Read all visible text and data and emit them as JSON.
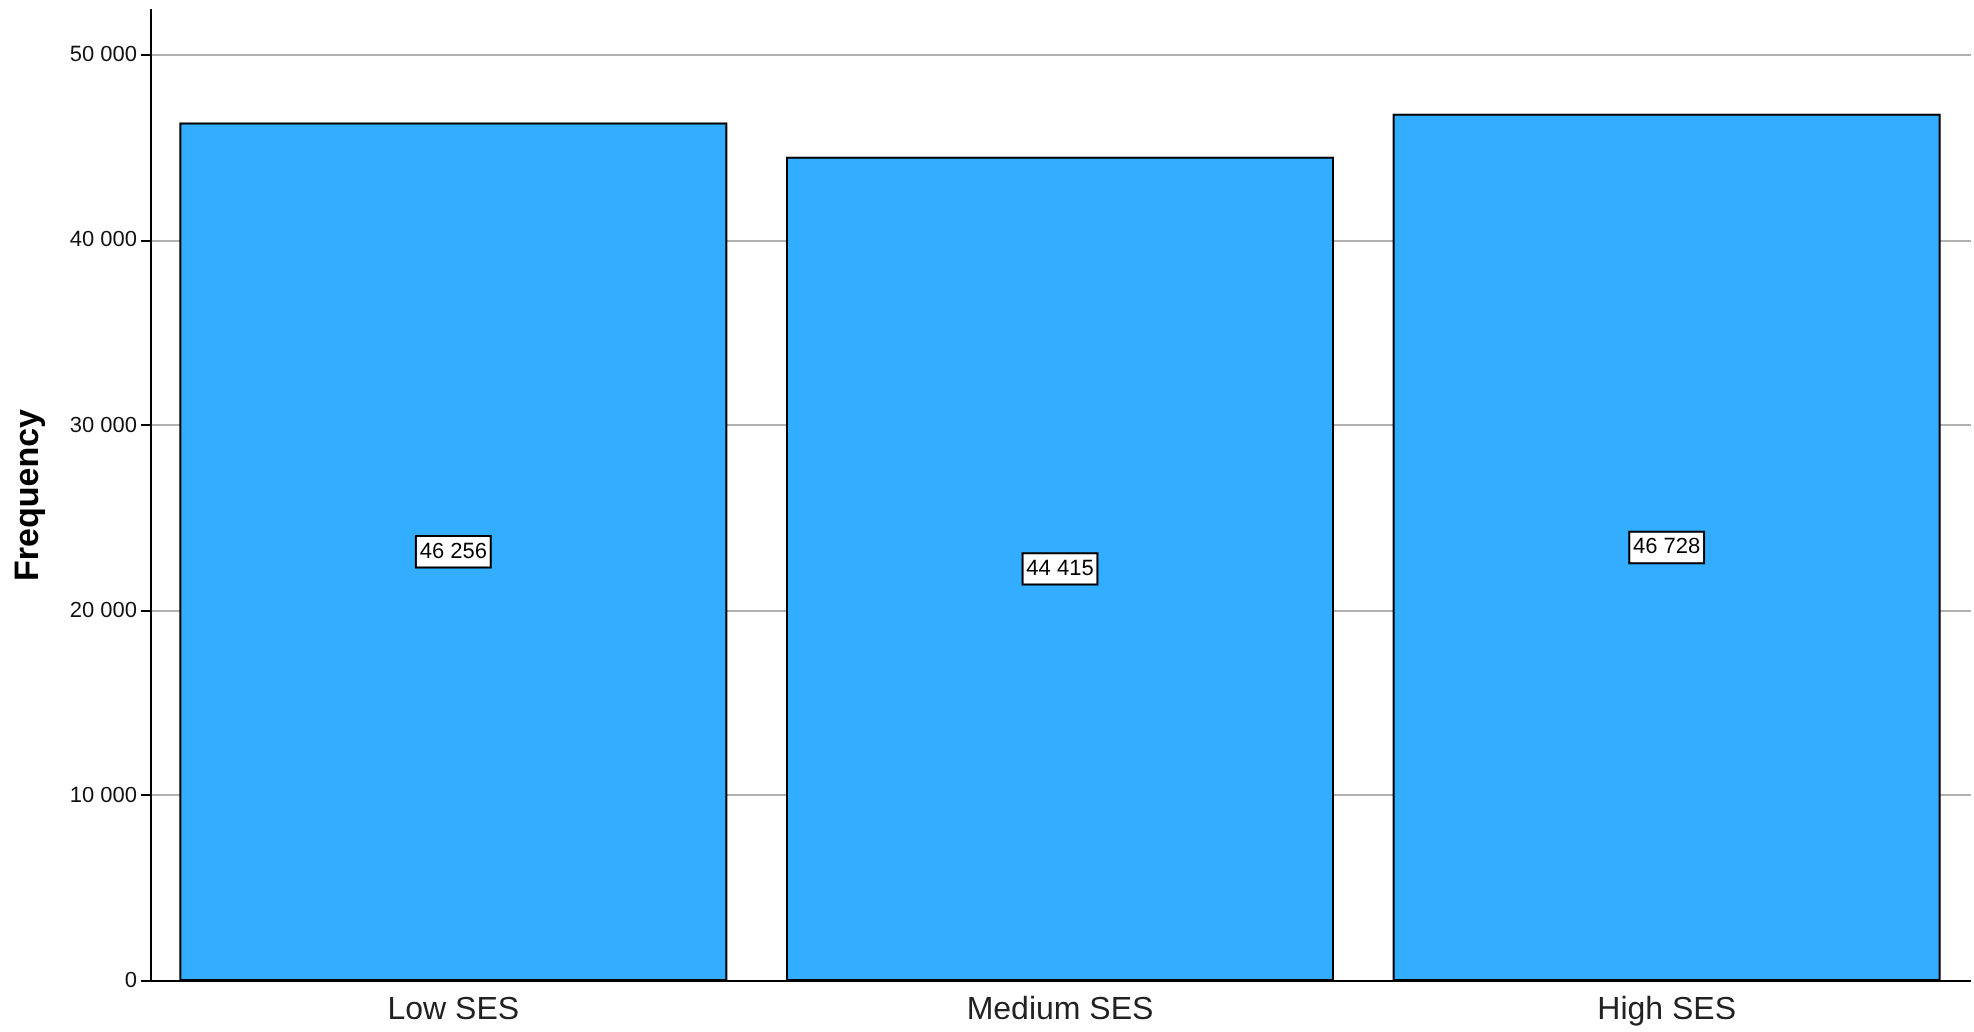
{
  "chart_data": {
    "type": "bar",
    "ylabel": "Frequency",
    "categories": [
      "Low SES",
      "Medium SES",
      "High SES"
    ],
    "values": [
      46256,
      44415,
      46728
    ],
    "color": "#33adff",
    "value_labels": [
      "46 256",
      "44 415",
      "46 728"
    ],
    "ylim": [
      0,
      52500
    ],
    "yticks": [
      {
        "value": 0,
        "label": "0"
      },
      {
        "value": 10000,
        "label": "10 000"
      },
      {
        "value": 20000,
        "label": "20 000"
      },
      {
        "value": 30000,
        "label": "30 000"
      },
      {
        "value": 40000,
        "label": "40 000"
      },
      {
        "value": 50000,
        "label": "50 000"
      }
    ],
    "grid": "y"
  }
}
